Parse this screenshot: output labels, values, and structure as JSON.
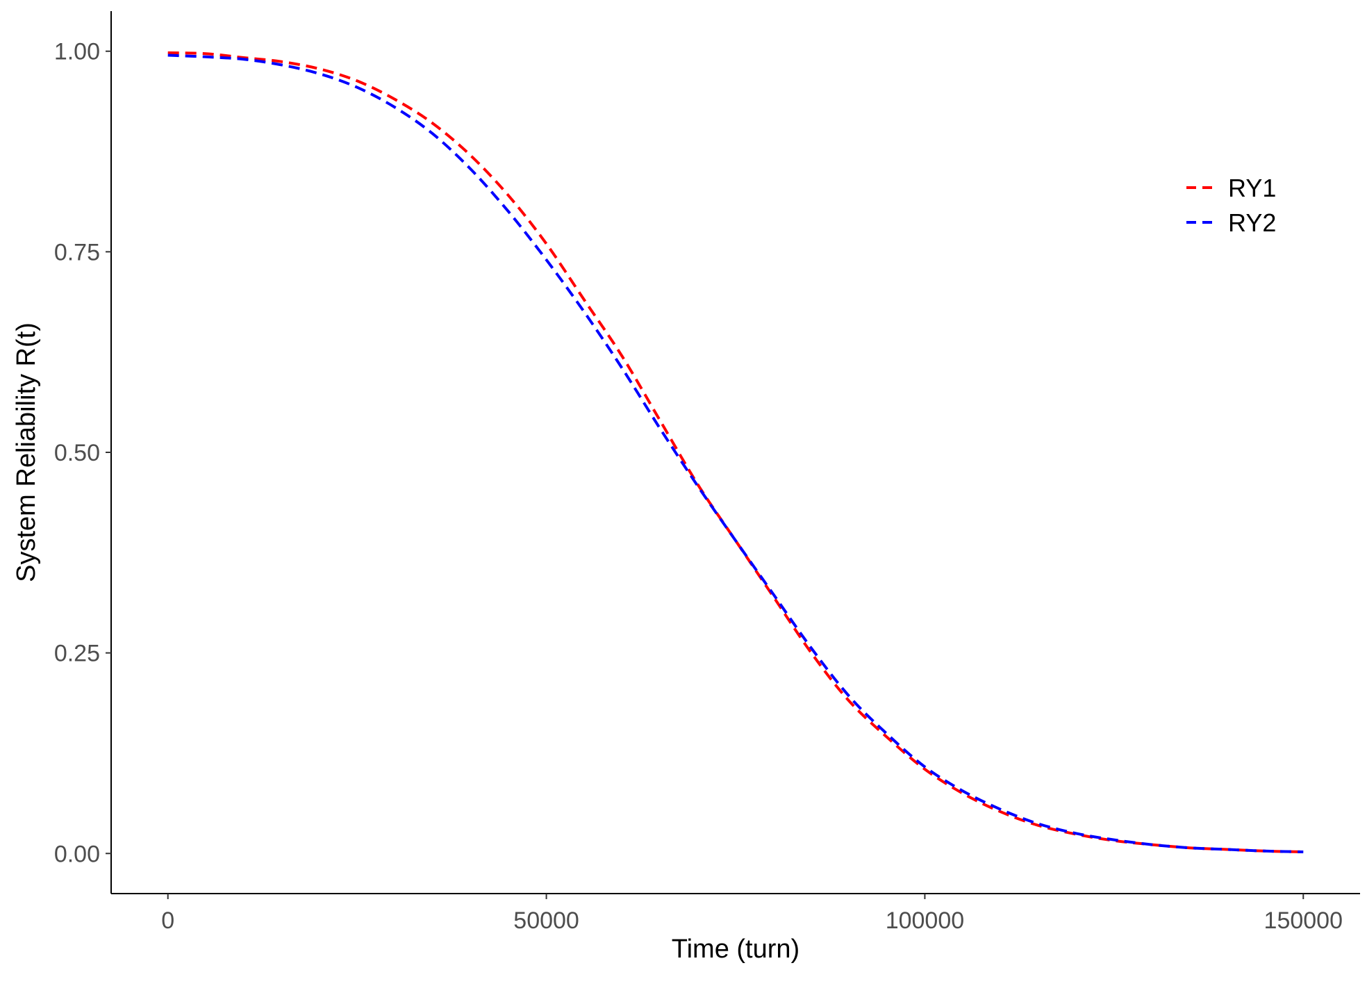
{
  "chart_data": {
    "type": "line",
    "title": "",
    "xlabel": "Time (turn)",
    "ylabel": "System Reliability R(t)",
    "xlim": [
      -7500,
      157500
    ],
    "ylim": [
      -0.05,
      1.05
    ],
    "xticks": [
      0,
      50000,
      100000,
      150000
    ],
    "xtick_labels": [
      "0",
      "50000",
      "100000",
      "150000"
    ],
    "yticks": [
      0,
      0.25,
      0.5,
      0.75,
      1.0
    ],
    "ytick_labels": [
      "0.00",
      "0.25",
      "0.50",
      "0.75",
      "1.00"
    ],
    "grid": false,
    "legend_position": "top-right",
    "line_style": "dashed",
    "x": [
      0,
      5000,
      10000,
      15000,
      20000,
      25000,
      30000,
      35000,
      40000,
      45000,
      50000,
      55000,
      60000,
      65000,
      70000,
      75000,
      80000,
      85000,
      90000,
      95000,
      100000,
      105000,
      110000,
      115000,
      120000,
      125000,
      130000,
      135000,
      140000,
      145000,
      150000
    ],
    "series": [
      {
        "name": "RY1",
        "color": "#ff0000",
        "values": [
          0.998,
          0.997,
          0.992,
          0.987,
          0.978,
          0.963,
          0.94,
          0.91,
          0.87,
          0.82,
          0.76,
          0.69,
          0.62,
          0.54,
          0.46,
          0.39,
          0.32,
          0.25,
          0.19,
          0.145,
          0.105,
          0.075,
          0.052,
          0.035,
          0.024,
          0.016,
          0.011,
          0.007,
          0.005,
          0.003,
          0.002
        ]
      },
      {
        "name": "RY2",
        "color": "#0000ff",
        "values": [
          0.995,
          0.993,
          0.99,
          0.983,
          0.972,
          0.955,
          0.93,
          0.897,
          0.853,
          0.8,
          0.74,
          0.675,
          0.605,
          0.53,
          0.458,
          0.39,
          0.323,
          0.256,
          0.196,
          0.149,
          0.108,
          0.078,
          0.055,
          0.037,
          0.025,
          0.017,
          0.011,
          0.007,
          0.005,
          0.003,
          0.002
        ]
      }
    ]
  }
}
